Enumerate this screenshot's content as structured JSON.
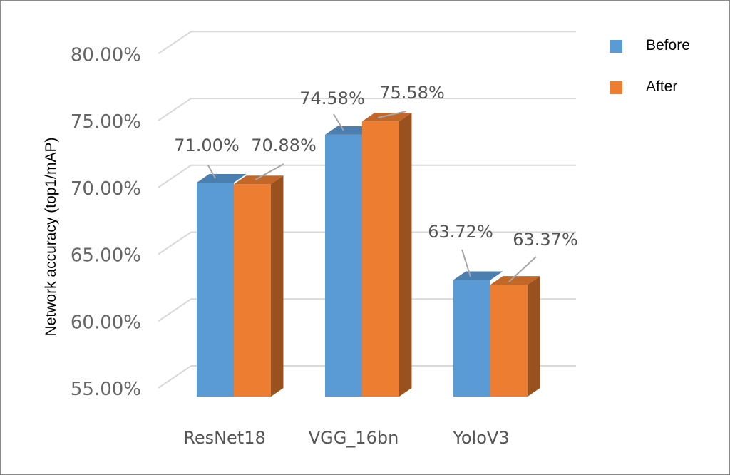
{
  "chart_data": {
    "type": "bar",
    "style": "3d-clustered-column",
    "title": "",
    "xlabel": "",
    "ylabel": "Network accuracy (top1/mAP)",
    "categories": [
      "ResNet18",
      "VGG_16bn",
      "YoloV3"
    ],
    "series": [
      {
        "name": "Before",
        "color": "#5b9bd5",
        "values": [
          71.0,
          74.58,
          63.72
        ],
        "labels": [
          "71.00%",
          "74.58%",
          "63.72%"
        ]
      },
      {
        "name": "After",
        "color": "#ed7d31",
        "values": [
          70.88,
          75.58,
          63.37
        ],
        "labels": [
          "70.88%",
          "75.58%",
          "63.37%"
        ]
      }
    ],
    "ylim": [
      55,
      80
    ],
    "yticks": [
      55,
      60,
      65,
      70,
      75,
      80
    ],
    "ytick_labels": [
      "55.00%",
      "60.00%",
      "65.00%",
      "70.00%",
      "75.00%",
      "80.00%"
    ],
    "grid": true,
    "legend": {
      "position": "top-right",
      "entries": [
        "Before",
        "After"
      ]
    }
  }
}
